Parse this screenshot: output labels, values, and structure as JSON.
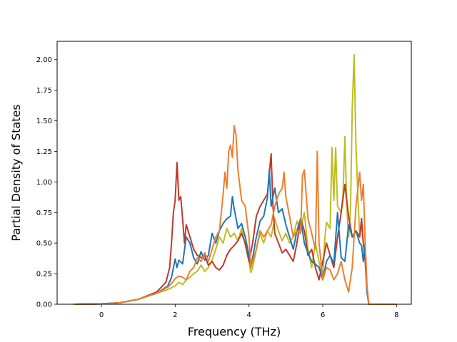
{
  "chart_data": {
    "type": "line",
    "title": "",
    "xlabel": "Frequency (THz)",
    "ylabel": "Partial Density of States",
    "xlim": [
      -1.2,
      8.4
    ],
    "ylim": [
      0,
      2.15
    ],
    "xticks": [
      0,
      2,
      4,
      6,
      8
    ],
    "xtick_labels": [
      "0",
      "2",
      "4",
      "6",
      "8"
    ],
    "yticks": [
      0,
      0.25,
      0.5,
      0.75,
      1.0,
      1.25,
      1.5,
      1.75,
      2.0
    ],
    "ytick_labels": [
      "0.00",
      "0.25",
      "0.50",
      "0.75",
      "1.00",
      "1.25",
      "1.50",
      "1.75",
      "2.00"
    ],
    "grid": false,
    "legend": "none",
    "series": [
      {
        "color": "#bcbd22",
        "points": [
          [
            -0.75,
            0
          ],
          [
            0,
            0.003
          ],
          [
            0.5,
            0.012
          ],
          [
            1.0,
            0.04
          ],
          [
            1.5,
            0.09
          ],
          [
            1.8,
            0.12
          ],
          [
            2.0,
            0.15
          ],
          [
            2.1,
            0.18
          ],
          [
            2.2,
            0.16
          ],
          [
            2.3,
            0.2
          ],
          [
            2.4,
            0.22
          ],
          [
            2.5,
            0.25
          ],
          [
            2.6,
            0.27
          ],
          [
            2.7,
            0.32
          ],
          [
            2.8,
            0.27
          ],
          [
            2.9,
            0.3
          ],
          [
            3.0,
            0.36
          ],
          [
            3.1,
            0.45
          ],
          [
            3.2,
            0.55
          ],
          [
            3.3,
            0.5
          ],
          [
            3.4,
            0.62
          ],
          [
            3.5,
            0.55
          ],
          [
            3.6,
            0.58
          ],
          [
            3.7,
            0.52
          ],
          [
            3.8,
            0.62
          ],
          [
            3.9,
            0.48
          ],
          [
            4.0,
            0.35
          ],
          [
            4.05,
            0.26
          ],
          [
            4.1,
            0.3
          ],
          [
            4.2,
            0.45
          ],
          [
            4.3,
            0.58
          ],
          [
            4.4,
            0.5
          ],
          [
            4.5,
            0.6
          ],
          [
            4.6,
            0.55
          ],
          [
            4.7,
            0.7
          ],
          [
            4.8,
            0.6
          ],
          [
            4.9,
            0.52
          ],
          [
            5.0,
            0.58
          ],
          [
            5.1,
            0.5
          ],
          [
            5.2,
            0.55
          ],
          [
            5.3,
            0.68
          ],
          [
            5.4,
            0.6
          ],
          [
            5.5,
            0.75
          ],
          [
            5.6,
            0.45
          ],
          [
            5.7,
            0.3
          ],
          [
            5.8,
            0.5
          ],
          [
            5.9,
            0.35
          ],
          [
            6.0,
            0.2
          ],
          [
            6.05,
            0.52
          ],
          [
            6.1,
            0.67
          ],
          [
            6.2,
            0.62
          ],
          [
            6.25,
            1.28
          ],
          [
            6.3,
            0.85
          ],
          [
            6.35,
            1.28
          ],
          [
            6.4,
            0.8
          ],
          [
            6.5,
            0.75
          ],
          [
            6.55,
            0.9
          ],
          [
            6.6,
            1.37
          ],
          [
            6.65,
            0.8
          ],
          [
            6.7,
            0.55
          ],
          [
            6.75,
            0.75
          ],
          [
            6.8,
            1.6
          ],
          [
            6.85,
            2.04
          ],
          [
            6.9,
            1.3
          ],
          [
            6.95,
            0.9
          ],
          [
            7.0,
            0.55
          ],
          [
            7.05,
            0.65
          ],
          [
            7.1,
            0.5
          ],
          [
            7.15,
            0.45
          ],
          [
            7.2,
            0.1
          ],
          [
            7.25,
            0
          ],
          [
            8.0,
            0
          ]
        ]
      },
      {
        "color": "#c0392b",
        "points": [
          [
            -0.75,
            0
          ],
          [
            0,
            0.003
          ],
          [
            0.5,
            0.012
          ],
          [
            1.0,
            0.04
          ],
          [
            1.5,
            0.1
          ],
          [
            1.75,
            0.18
          ],
          [
            1.85,
            0.3
          ],
          [
            1.9,
            0.5
          ],
          [
            1.95,
            0.75
          ],
          [
            2.0,
            0.85
          ],
          [
            2.05,
            1.16
          ],
          [
            2.1,
            0.85
          ],
          [
            2.15,
            0.88
          ],
          [
            2.2,
            0.7
          ],
          [
            2.25,
            0.5
          ],
          [
            2.3,
            0.65
          ],
          [
            2.4,
            0.55
          ],
          [
            2.5,
            0.45
          ],
          [
            2.6,
            0.4
          ],
          [
            2.7,
            0.38
          ],
          [
            2.8,
            0.4
          ],
          [
            2.9,
            0.32
          ],
          [
            3.0,
            0.35
          ],
          [
            3.1,
            0.3
          ],
          [
            3.2,
            0.28
          ],
          [
            3.3,
            0.32
          ],
          [
            3.4,
            0.4
          ],
          [
            3.5,
            0.45
          ],
          [
            3.6,
            0.48
          ],
          [
            3.7,
            0.52
          ],
          [
            3.8,
            0.58
          ],
          [
            3.9,
            0.5
          ],
          [
            4.0,
            0.35
          ],
          [
            4.1,
            0.5
          ],
          [
            4.2,
            0.72
          ],
          [
            4.3,
            0.8
          ],
          [
            4.4,
            0.85
          ],
          [
            4.5,
            0.9
          ],
          [
            4.6,
            1.23
          ],
          [
            4.65,
            0.8
          ],
          [
            4.7,
            0.58
          ],
          [
            4.8,
            0.5
          ],
          [
            4.9,
            0.42
          ],
          [
            5.0,
            0.45
          ],
          [
            5.1,
            0.4
          ],
          [
            5.2,
            0.35
          ],
          [
            5.3,
            0.5
          ],
          [
            5.4,
            0.7
          ],
          [
            5.5,
            0.6
          ],
          [
            5.6,
            0.4
          ],
          [
            5.7,
            0.45
          ],
          [
            5.8,
            0.3
          ],
          [
            5.9,
            0.2
          ],
          [
            6.0,
            0.35
          ],
          [
            6.1,
            0.5
          ],
          [
            6.2,
            0.4
          ],
          [
            6.3,
            0.3
          ],
          [
            6.4,
            0.55
          ],
          [
            6.5,
            0.75
          ],
          [
            6.6,
            0.98
          ],
          [
            6.7,
            0.72
          ],
          [
            6.8,
            0.55
          ],
          [
            6.9,
            0.6
          ],
          [
            7.0,
            0.55
          ],
          [
            7.05,
            0.7
          ],
          [
            7.1,
            0.5
          ],
          [
            7.15,
            0.35
          ],
          [
            7.2,
            0.1
          ],
          [
            7.25,
            0
          ],
          [
            8.0,
            0
          ]
        ]
      },
      {
        "color": "#1f77b4",
        "points": [
          [
            -0.75,
            0
          ],
          [
            0,
            0.003
          ],
          [
            0.5,
            0.012
          ],
          [
            1.0,
            0.04
          ],
          [
            1.5,
            0.09
          ],
          [
            1.8,
            0.15
          ],
          [
            1.9,
            0.22
          ],
          [
            2.0,
            0.37
          ],
          [
            2.05,
            0.3
          ],
          [
            2.1,
            0.36
          ],
          [
            2.2,
            0.33
          ],
          [
            2.3,
            0.55
          ],
          [
            2.4,
            0.5
          ],
          [
            2.5,
            0.38
          ],
          [
            2.6,
            0.33
          ],
          [
            2.7,
            0.43
          ],
          [
            2.8,
            0.36
          ],
          [
            2.9,
            0.4
          ],
          [
            3.0,
            0.58
          ],
          [
            3.1,
            0.5
          ],
          [
            3.2,
            0.6
          ],
          [
            3.3,
            0.66
          ],
          [
            3.4,
            0.7
          ],
          [
            3.5,
            0.72
          ],
          [
            3.55,
            0.88
          ],
          [
            3.6,
            0.78
          ],
          [
            3.7,
            0.62
          ],
          [
            3.8,
            0.66
          ],
          [
            3.9,
            0.55
          ],
          [
            4.0,
            0.4
          ],
          [
            4.05,
            0.3
          ],
          [
            4.1,
            0.38
          ],
          [
            4.2,
            0.55
          ],
          [
            4.3,
            0.68
          ],
          [
            4.4,
            0.72
          ],
          [
            4.5,
            0.87
          ],
          [
            4.55,
            1.1
          ],
          [
            4.6,
            0.8
          ],
          [
            4.7,
            0.95
          ],
          [
            4.8,
            0.75
          ],
          [
            4.9,
            0.78
          ],
          [
            5.0,
            0.65
          ],
          [
            5.1,
            0.55
          ],
          [
            5.2,
            0.45
          ],
          [
            5.3,
            0.6
          ],
          [
            5.4,
            0.7
          ],
          [
            5.5,
            0.5
          ],
          [
            5.6,
            0.42
          ],
          [
            5.7,
            0.35
          ],
          [
            5.8,
            0.33
          ],
          [
            5.9,
            0.3
          ],
          [
            6.0,
            0.2
          ],
          [
            6.1,
            0.35
          ],
          [
            6.2,
            0.4
          ],
          [
            6.3,
            0.33
          ],
          [
            6.4,
            0.75
          ],
          [
            6.5,
            0.38
          ],
          [
            6.6,
            0.35
          ],
          [
            6.7,
            0.65
          ],
          [
            6.8,
            0.55
          ],
          [
            6.9,
            0.6
          ],
          [
            7.0,
            0.5
          ],
          [
            7.05,
            0.48
          ],
          [
            7.1,
            0.35
          ],
          [
            7.15,
            0.5
          ],
          [
            7.2,
            0.1
          ],
          [
            7.25,
            0
          ],
          [
            8.0,
            0
          ]
        ]
      },
      {
        "color": "#ee7f2d",
        "points": [
          [
            -0.75,
            0
          ],
          [
            0,
            0.003
          ],
          [
            0.5,
            0.012
          ],
          [
            1.0,
            0.04
          ],
          [
            1.5,
            0.09
          ],
          [
            1.8,
            0.14
          ],
          [
            1.9,
            0.17
          ],
          [
            2.0,
            0.21
          ],
          [
            2.1,
            0.23
          ],
          [
            2.2,
            0.22
          ],
          [
            2.3,
            0.2
          ],
          [
            2.4,
            0.27
          ],
          [
            2.5,
            0.3
          ],
          [
            2.6,
            0.38
          ],
          [
            2.7,
            0.35
          ],
          [
            2.8,
            0.42
          ],
          [
            2.9,
            0.35
          ],
          [
            3.0,
            0.45
          ],
          [
            3.1,
            0.55
          ],
          [
            3.2,
            0.6
          ],
          [
            3.3,
            0.9
          ],
          [
            3.35,
            1.08
          ],
          [
            3.4,
            0.95
          ],
          [
            3.45,
            1.25
          ],
          [
            3.5,
            1.3
          ],
          [
            3.55,
            1.2
          ],
          [
            3.6,
            1.46
          ],
          [
            3.65,
            1.38
          ],
          [
            3.7,
            1.1
          ],
          [
            3.8,
            0.85
          ],
          [
            3.9,
            0.8
          ],
          [
            4.0,
            0.55
          ],
          [
            4.05,
            0.3
          ],
          [
            4.1,
            0.35
          ],
          [
            4.2,
            0.45
          ],
          [
            4.3,
            0.6
          ],
          [
            4.4,
            0.55
          ],
          [
            4.5,
            0.6
          ],
          [
            4.6,
            0.65
          ],
          [
            4.7,
            0.8
          ],
          [
            4.8,
            0.9
          ],
          [
            4.9,
            0.95
          ],
          [
            4.95,
            1.08
          ],
          [
            5.0,
            0.88
          ],
          [
            5.1,
            0.72
          ],
          [
            5.2,
            0.55
          ],
          [
            5.3,
            0.6
          ],
          [
            5.4,
            0.58
          ],
          [
            5.45,
            1.05
          ],
          [
            5.5,
            1.1
          ],
          [
            5.6,
            0.7
          ],
          [
            5.7,
            0.58
          ],
          [
            5.8,
            0.45
          ],
          [
            5.85,
            1.25
          ],
          [
            5.9,
            0.5
          ],
          [
            6.0,
            0.2
          ],
          [
            6.1,
            0.3
          ],
          [
            6.2,
            0.28
          ],
          [
            6.3,
            0.2
          ],
          [
            6.4,
            0.25
          ],
          [
            6.5,
            0.35
          ],
          [
            6.6,
            0.2
          ],
          [
            6.7,
            0.1
          ],
          [
            6.8,
            0.3
          ],
          [
            6.9,
            0.8
          ],
          [
            7.0,
            1.08
          ],
          [
            7.05,
            0.85
          ],
          [
            7.1,
            0.98
          ],
          [
            7.15,
            0.5
          ],
          [
            7.2,
            0.15
          ],
          [
            7.25,
            0
          ],
          [
            8.0,
            0
          ]
        ]
      }
    ]
  }
}
